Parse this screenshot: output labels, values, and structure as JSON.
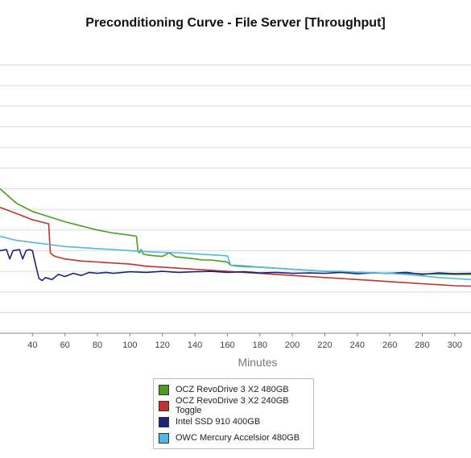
{
  "chart_data": {
    "type": "line",
    "title": "Preconditioning Curve - File Server [Throughput]",
    "xlabel": "Minutes",
    "ylabel": "",
    "xlim": [
      20,
      310
    ],
    "ylim": [
      0,
      14
    ],
    "x_ticks": [
      40,
      60,
      80,
      100,
      120,
      140,
      160,
      180,
      200,
      220,
      240,
      260,
      280,
      300
    ],
    "x_tick_labels": [
      "40",
      "60",
      "80",
      "100",
      "120",
      "140",
      "160",
      "180",
      "200",
      "220",
      "240",
      "260",
      "280",
      "300"
    ],
    "y_gridlines": [
      1,
      2,
      3,
      4,
      5,
      6,
      7,
      8,
      9,
      10,
      11,
      12,
      13
    ],
    "grid": true,
    "legend_position": "bottom",
    "series": [
      {
        "name": "OCZ RevoDrive 3 X2 480GB",
        "color": "#4a9e1f",
        "points": [
          [
            20,
            7.0
          ],
          [
            30,
            6.3
          ],
          [
            40,
            5.9
          ],
          [
            50,
            5.65
          ],
          [
            60,
            5.4
          ],
          [
            70,
            5.2
          ],
          [
            80,
            5.0
          ],
          [
            90,
            4.85
          ],
          [
            100,
            4.75
          ],
          [
            104,
            4.7
          ],
          [
            105,
            3.95
          ],
          [
            106,
            3.9
          ],
          [
            107,
            4.05
          ],
          [
            108,
            3.85
          ],
          [
            110,
            3.8
          ],
          [
            115,
            3.75
          ],
          [
            120,
            3.72
          ],
          [
            124,
            3.9
          ],
          [
            128,
            3.7
          ],
          [
            135,
            3.65
          ],
          [
            140,
            3.6
          ],
          [
            145,
            3.55
          ],
          [
            150,
            3.55
          ],
          [
            155,
            3.5
          ],
          [
            160,
            3.45
          ],
          [
            162,
            3.3
          ],
          [
            166,
            3.28
          ],
          [
            172,
            3.25
          ],
          [
            180,
            3.2
          ],
          [
            190,
            3.15
          ],
          [
            200,
            3.1
          ],
          [
            210,
            3.05
          ],
          [
            220,
            3.0
          ],
          [
            230,
            2.98
          ],
          [
            240,
            2.95
          ],
          [
            250,
            2.93
          ],
          [
            260,
            2.9
          ],
          [
            270,
            2.9
          ],
          [
            280,
            2.88
          ],
          [
            290,
            2.87
          ],
          [
            300,
            2.85
          ],
          [
            310,
            2.85
          ]
        ]
      },
      {
        "name": "OCZ RevoDrive 3 X2 240GB Toggle",
        "color": "#c2312c",
        "points": [
          [
            20,
            6.1
          ],
          [
            25,
            5.95
          ],
          [
            30,
            5.8
          ],
          [
            35,
            5.65
          ],
          [
            40,
            5.5
          ],
          [
            45,
            5.4
          ],
          [
            50,
            5.3
          ],
          [
            51,
            3.9
          ],
          [
            53,
            3.75
          ],
          [
            55,
            3.7
          ],
          [
            60,
            3.6
          ],
          [
            70,
            3.5
          ],
          [
            80,
            3.45
          ],
          [
            90,
            3.4
          ],
          [
            100,
            3.35
          ],
          [
            110,
            3.25
          ],
          [
            120,
            3.2
          ],
          [
            130,
            3.15
          ],
          [
            140,
            3.1
          ],
          [
            150,
            3.05
          ],
          [
            160,
            3.0
          ],
          [
            170,
            2.95
          ],
          [
            180,
            2.9
          ],
          [
            190,
            2.85
          ],
          [
            200,
            2.8
          ],
          [
            210,
            2.75
          ],
          [
            220,
            2.7
          ],
          [
            230,
            2.65
          ],
          [
            240,
            2.6
          ],
          [
            250,
            2.55
          ],
          [
            260,
            2.5
          ],
          [
            270,
            2.45
          ],
          [
            280,
            2.4
          ],
          [
            290,
            2.35
          ],
          [
            300,
            2.3
          ],
          [
            310,
            2.28
          ]
        ]
      },
      {
        "name": "Intel SSD 910 400GB",
        "color": "#1a237e",
        "points": [
          [
            20,
            4.0
          ],
          [
            24,
            4.05
          ],
          [
            26,
            3.6
          ],
          [
            28,
            4.0
          ],
          [
            32,
            4.05
          ],
          [
            34,
            3.6
          ],
          [
            36,
            4.0
          ],
          [
            38,
            4.05
          ],
          [
            40,
            4.0
          ],
          [
            42,
            3.3
          ],
          [
            44,
            2.65
          ],
          [
            46,
            2.55
          ],
          [
            48,
            2.7
          ],
          [
            52,
            2.6
          ],
          [
            56,
            2.85
          ],
          [
            60,
            2.75
          ],
          [
            65,
            2.9
          ],
          [
            70,
            2.8
          ],
          [
            75,
            2.95
          ],
          [
            80,
            2.9
          ],
          [
            85,
            2.95
          ],
          [
            90,
            2.9
          ],
          [
            100,
            2.98
          ],
          [
            110,
            2.95
          ],
          [
            120,
            3.0
          ],
          [
            130,
            2.95
          ],
          [
            140,
            2.98
          ],
          [
            150,
            3.0
          ],
          [
            160,
            2.95
          ],
          [
            170,
            2.98
          ],
          [
            180,
            2.92
          ],
          [
            190,
            2.95
          ],
          [
            200,
            2.9
          ],
          [
            210,
            2.92
          ],
          [
            220,
            2.9
          ],
          [
            230,
            2.95
          ],
          [
            240,
            2.88
          ],
          [
            250,
            2.92
          ],
          [
            260,
            2.9
          ],
          [
            270,
            2.95
          ],
          [
            280,
            2.85
          ],
          [
            290,
            2.92
          ],
          [
            300,
            2.88
          ],
          [
            310,
            2.9
          ]
        ]
      },
      {
        "name": "OWC Mercury Accelsior 480GB",
        "color": "#4fb8e8",
        "points": [
          [
            20,
            4.7
          ],
          [
            30,
            4.5
          ],
          [
            40,
            4.4
          ],
          [
            50,
            4.3
          ],
          [
            60,
            4.2
          ],
          [
            70,
            4.15
          ],
          [
            80,
            4.1
          ],
          [
            90,
            4.05
          ],
          [
            100,
            4.0
          ],
          [
            110,
            3.95
          ],
          [
            120,
            3.92
          ],
          [
            130,
            3.9
          ],
          [
            140,
            3.85
          ],
          [
            150,
            3.8
          ],
          [
            160,
            3.75
          ],
          [
            162,
            3.3
          ],
          [
            165,
            3.25
          ],
          [
            170,
            3.22
          ],
          [
            180,
            3.2
          ],
          [
            190,
            3.15
          ],
          [
            200,
            3.1
          ],
          [
            210,
            3.05
          ],
          [
            220,
            3.0
          ],
          [
            230,
            3.0
          ],
          [
            240,
            2.95
          ],
          [
            250,
            2.92
          ],
          [
            260,
            2.9
          ],
          [
            270,
            2.85
          ],
          [
            280,
            2.78
          ],
          [
            290,
            2.7
          ],
          [
            300,
            2.65
          ],
          [
            310,
            2.6
          ]
        ]
      }
    ]
  }
}
